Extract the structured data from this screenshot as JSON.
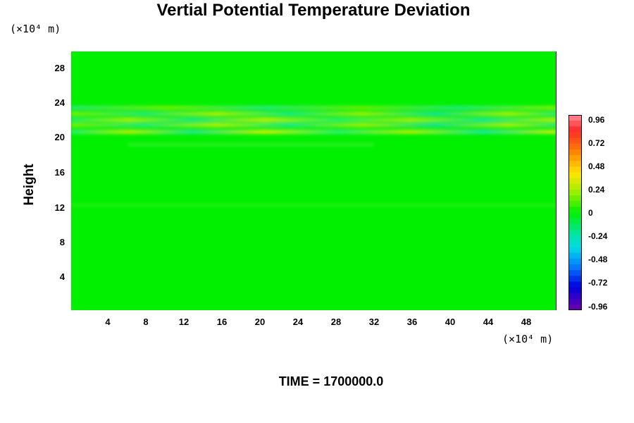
{
  "chart_data": {
    "type": "heatmap",
    "title": "Vertial Potential Temperature Deviation",
    "ylabel": "Height",
    "y_unit": "(×10⁴ m)",
    "x_unit": "(×10⁴ m)",
    "xlim": [
      0,
      51
    ],
    "ylim": [
      0,
      30
    ],
    "x_ticks": [
      "4",
      "8",
      "12",
      "16",
      "20",
      "24",
      "28",
      "32",
      "36",
      "40",
      "44",
      "48"
    ],
    "y_ticks": [
      "4",
      "8",
      "12",
      "16",
      "20",
      "24",
      "28"
    ],
    "colorbar_ticks": [
      "0.96",
      "0.72",
      "0.48",
      "0.24",
      "0",
      "-0.24",
      "-0.48",
      "-0.72",
      "-0.96"
    ],
    "colorbar_range": [
      -0.96,
      0.96
    ],
    "background_value": 0,
    "bands": [
      {
        "y": 20.5,
        "polarity": "alternating",
        "amplitude": 0.24
      },
      {
        "y": 21.8,
        "polarity": "alternating",
        "amplitude": 0.24
      },
      {
        "y": 23.2,
        "polarity": "alternating",
        "amplitude": 0.12
      },
      {
        "y": 12.0,
        "polarity": "weak",
        "amplitude": 0.05
      }
    ],
    "footer": "TIME = 1700000.0"
  }
}
